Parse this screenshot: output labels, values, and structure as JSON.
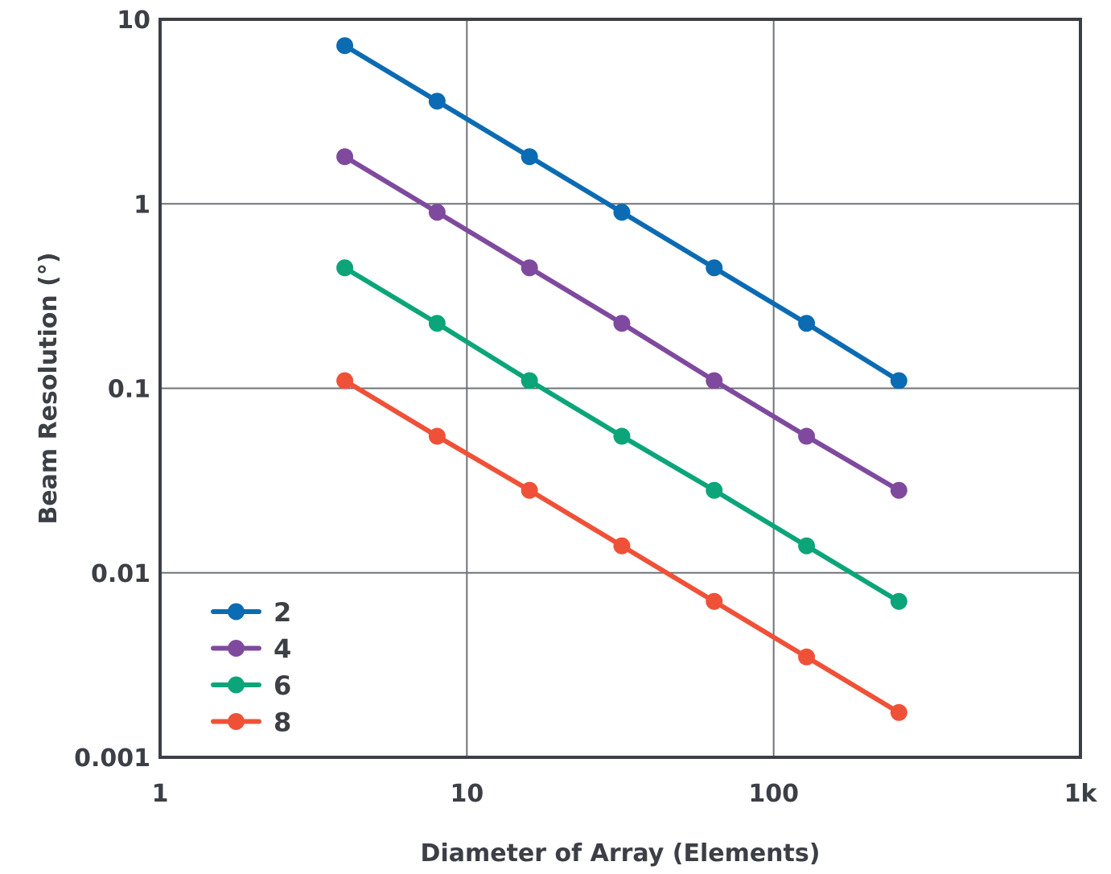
{
  "chart_data": {
    "type": "line",
    "title": "",
    "xlabel": "Diameter of Array (Elements)",
    "ylabel": "Beam Resolution (°)",
    "xscale": "log",
    "yscale": "log",
    "xlim": [
      1,
      1000
    ],
    "ylim": [
      0.001,
      10
    ],
    "grid": true,
    "legend_position": "bottom-left",
    "x_tick_values": [
      1,
      10,
      100,
      1000
    ],
    "x_tick_labels": [
      "1",
      "10",
      "100",
      "1k"
    ],
    "y_tick_values": [
      10,
      1,
      0.1,
      0.01,
      0.001
    ],
    "y_tick_labels": [
      "10",
      "1",
      "0.1",
      "0.01",
      "0.001"
    ],
    "x": [
      4,
      8,
      16,
      32,
      64,
      128,
      256
    ],
    "series": [
      {
        "name": "2",
        "color": "#0b6bb3",
        "values": [
          7.2,
          3.6,
          1.8,
          0.9,
          0.45,
          0.225,
          0.11
        ]
      },
      {
        "name": "4",
        "color": "#7f4a9e",
        "values": [
          1.8,
          0.9,
          0.45,
          0.225,
          0.11,
          0.055,
          0.028
        ]
      },
      {
        "name": "6",
        "color": "#0ca57a",
        "values": [
          0.45,
          0.225,
          0.11,
          0.055,
          0.028,
          0.014,
          0.007
        ]
      },
      {
        "name": "8",
        "color": "#ef5138",
        "values": [
          0.11,
          0.055,
          0.028,
          0.014,
          0.007,
          0.0035,
          0.00175
        ]
      }
    ]
  }
}
